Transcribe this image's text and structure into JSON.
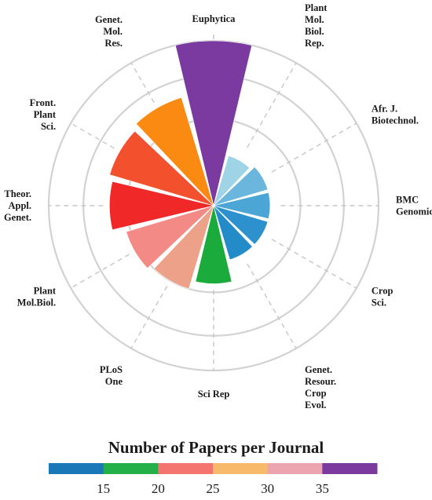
{
  "chart_data": {
    "type": "polar-bar",
    "categories": [
      "Euphytica",
      "Plant Mol. Biol. Rep.",
      "Afr. J. Biotechnol.",
      "BMC Genomics",
      "Crop Sci.",
      "Genet. Resour. Crop Evol.",
      "Sci Rep",
      "PLoS One",
      "Plant Mol.Biol.",
      "Theor. Appl. Genet.",
      "Front. Plant Sci.",
      "Genet. Mol. Res."
    ],
    "label_lines": [
      [
        "Euphytica"
      ],
      [
        "Plant",
        "Mol.",
        "Biol.",
        "Rep."
      ],
      [
        "Afr. J.",
        "Biotechnol."
      ],
      [
        "BMC",
        "Genomics"
      ],
      [
        "Crop",
        "Sci."
      ],
      [
        "Genet.",
        "Resour.",
        "Crop",
        "Evol."
      ],
      [
        "Sci Rep"
      ],
      [
        "PLoS",
        "One"
      ],
      [
        "Plant",
        "Mol.Biol."
      ],
      [
        "Theor.",
        "Appl.",
        "Genet."
      ],
      [
        "Front.",
        "Plant",
        "Sci."
      ],
      [
        "Genet.",
        "Mol.",
        "Res."
      ]
    ],
    "values": [
      38,
      12,
      13,
      13,
      13,
      13,
      18,
      20,
      21,
      24,
      25,
      26
    ],
    "colors": [
      "#7a3aa0",
      "#9fd3e6",
      "#6bb6dc",
      "#4ba6d6",
      "#2c91cc",
      "#228bc8",
      "#1aab3c",
      "#eca188",
      "#f48a86",
      "#f02828",
      "#f3502e",
      "#fa8a12"
    ],
    "rlim": [
      0,
      38
    ],
    "grid_circles": [
      20,
      30,
      38
    ],
    "legend": {
      "title": "Number of Papers per Journal",
      "colors": [
        "#1b78b8",
        "#24b048",
        "#f4746f",
        "#f7b96a",
        "#eca4ae",
        "#7b3a9e"
      ],
      "ticks": [
        "15",
        "20",
        "25",
        "30",
        "35"
      ]
    }
  }
}
